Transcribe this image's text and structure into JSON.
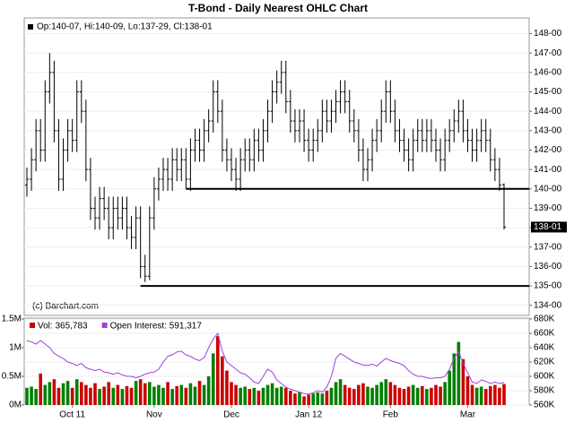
{
  "chart_data": {
    "type": "ohlc",
    "title": "T-Bond - Daily Nearest OHLC Chart",
    "legend_text": "Op:140-07, Hi:140-09, Lo:137-29, Cl:138-01",
    "credit": "(c) Barchart.com",
    "last_label": "138-01",
    "color": "#000000",
    "categories": [
      null,
      null,
      null,
      null,
      null,
      null,
      null,
      null,
      null,
      null,
      "Oct 11",
      null,
      null,
      null,
      null,
      null,
      null,
      null,
      null,
      null,
      null,
      null,
      null,
      null,
      null,
      null,
      null,
      null,
      "Nov",
      null,
      null,
      null,
      null,
      null,
      null,
      null,
      null,
      null,
      null,
      null,
      null,
      null,
      null,
      null,
      null,
      "Dec",
      null,
      null,
      null,
      null,
      null,
      null,
      null,
      null,
      null,
      null,
      null,
      null,
      null,
      null,
      null,
      null,
      "Jan 12",
      null,
      null,
      null,
      null,
      null,
      null,
      null,
      null,
      null,
      null,
      null,
      null,
      null,
      null,
      null,
      null,
      null,
      "Feb",
      null,
      null,
      null,
      null,
      null,
      null,
      null,
      null,
      null,
      null,
      null,
      null,
      null,
      null,
      null,
      null,
      "Mar",
      null,
      null,
      null,
      null,
      null,
      null,
      null,
      null
    ],
    "open": [
      140.2,
      140.5,
      141.5,
      143,
      142,
      145,
      146,
      143,
      140.5,
      142,
      143,
      142.5,
      145,
      144,
      141,
      139,
      138.5,
      139.5,
      139,
      138,
      139,
      138.5,
      139,
      138,
      137.5,
      138.5,
      136,
      135.5,
      138.5,
      140,
      140.5,
      141,
      140.5,
      141.5,
      141,
      141.5,
      140.5,
      142,
      142.5,
      142,
      143,
      143.5,
      145,
      144,
      142,
      141.5,
      141,
      140.5,
      141.5,
      142,
      141.5,
      142.5,
      142,
      143,
      144,
      145,
      145.5,
      146,
      144.5,
      143.5,
      143,
      143.5,
      142.5,
      142,
      142.5,
      143,
      144,
      143.5,
      144,
      144.5,
      145,
      144.5,
      143.5,
      143,
      142,
      141,
      141.5,
      142.5,
      143,
      144,
      145,
      144,
      143,
      142.5,
      142,
      141.5,
      142.5,
      143,
      142.5,
      143,
      142.5,
      142,
      141.5,
      142.5,
      143,
      143.5,
      144,
      143,
      142.5,
      142,
      142.5,
      143,
      142.5,
      141.5,
      141,
      140.21875
    ],
    "high": [
      141.1,
      142.1,
      143.6,
      143.6,
      145.6,
      147,
      146.6,
      143.6,
      142.6,
      143.6,
      143.6,
      145.6,
      145.6,
      144.6,
      141.6,
      139.6,
      140.1,
      140.1,
      139.6,
      139.6,
      139.6,
      139.6,
      139.6,
      138.6,
      139.1,
      139.1,
      136.6,
      139.1,
      140.6,
      141.1,
      141.6,
      141.6,
      142.1,
      142.1,
      142.1,
      142.1,
      142.6,
      143.1,
      143.1,
      143.6,
      144.1,
      145.6,
      145.6,
      144.6,
      142.6,
      142.1,
      141.6,
      142.1,
      142.6,
      142.6,
      143.1,
      143.1,
      143.6,
      144.6,
      145.6,
      146.1,
      146.6,
      146.6,
      145.1,
      144.1,
      144.1,
      144.1,
      143.1,
      143.1,
      143.6,
      144.6,
      144.6,
      144.6,
      145.1,
      145.6,
      145.6,
      145.1,
      144.1,
      143.6,
      142.6,
      142.1,
      143.1,
      143.6,
      144.6,
      145.6,
      145.6,
      144.6,
      143.6,
      143.1,
      142.6,
      143.1,
      143.6,
      143.6,
      143.6,
      143.6,
      143.1,
      142.6,
      143.1,
      143.6,
      144.1,
      144.6,
      144.6,
      143.6,
      143.1,
      143.1,
      143.6,
      143.6,
      143.1,
      142.1,
      141.6,
      140.28125
    ],
    "low": [
      139.6,
      139.9,
      140.9,
      141.4,
      141.4,
      144.4,
      142.4,
      139.9,
      139.9,
      141.4,
      141.9,
      141.9,
      143.4,
      140.4,
      138.4,
      137.9,
      137.9,
      138.4,
      137.4,
      137.4,
      137.9,
      137.9,
      137.4,
      136.9,
      136.9,
      135.4,
      135.2,
      135.3,
      137.9,
      139.4,
      139.9,
      139.9,
      139.9,
      140.4,
      140.4,
      140,
      139.9,
      141.4,
      141.4,
      141.4,
      142.4,
      142.9,
      143.4,
      141.4,
      140.9,
      140.4,
      139.9,
      139.9,
      140.9,
      140.9,
      140.9,
      141.4,
      141.4,
      142.4,
      143.4,
      144.4,
      144.9,
      143.9,
      142.9,
      142.4,
      142.4,
      141.9,
      141.4,
      141.4,
      141.9,
      142.4,
      142.9,
      142.9,
      143.4,
      143.9,
      143.9,
      142.9,
      142.4,
      141.4,
      140.4,
      140.4,
      140.9,
      141.9,
      142.4,
      143.4,
      143.4,
      142.4,
      141.9,
      141.4,
      140.9,
      140.9,
      141.9,
      141.9,
      141.9,
      141.9,
      141.4,
      140.9,
      140.9,
      141.9,
      142.4,
      142.9,
      142.4,
      141.9,
      141.4,
      141.4,
      141.9,
      141.9,
      140.9,
      140.4,
      139.9,
      137.90625
    ],
    "close": [
      140.5,
      141.5,
      143,
      142,
      145,
      146,
      143,
      140.5,
      142,
      143,
      142.5,
      145,
      144,
      141,
      139,
      138.5,
      139.5,
      139,
      138,
      139,
      138.5,
      139,
      138,
      137.5,
      138.5,
      136,
      135.5,
      138.5,
      140,
      140.5,
      141,
      140.5,
      141.5,
      141,
      141.5,
      140.5,
      142,
      142.5,
      142,
      143,
      143.5,
      145,
      144,
      142,
      141.5,
      141,
      140.5,
      141.5,
      142,
      141.5,
      142.5,
      142,
      143,
      144,
      145,
      145.5,
      146,
      144.5,
      143.5,
      143,
      143.5,
      142.5,
      142,
      142.5,
      143,
      144,
      143.5,
      144,
      144.5,
      145,
      144.5,
      143.5,
      143,
      142,
      141,
      141.5,
      142.5,
      143,
      144,
      145,
      144,
      143,
      142.5,
      142,
      141.5,
      142.5,
      143,
      142.5,
      143,
      142.5,
      142,
      141.5,
      142.5,
      143,
      143.5,
      144,
      143,
      142.5,
      142,
      142.5,
      143,
      142.5,
      141.5,
      141,
      140.2,
      138.03125
    ],
    "ylim": [
      133.48,
      148.81
    ],
    "yticks": [
      {
        "value": 134,
        "label": "134-00"
      },
      {
        "value": 135,
        "label": "135-00"
      },
      {
        "value": 136,
        "label": "136-00"
      },
      {
        "value": 137,
        "label": "137-00"
      },
      {
        "value": 138,
        "label": "138-00"
      },
      {
        "value": 139,
        "label": "139-00"
      },
      {
        "value": 140,
        "label": "140-00"
      },
      {
        "value": 141,
        "label": "141-00"
      },
      {
        "value": 142,
        "label": "142-00"
      },
      {
        "value": 143,
        "label": "143-00"
      },
      {
        "value": 144,
        "label": "144-00"
      },
      {
        "value": 145,
        "label": "145-00"
      },
      {
        "value": 146,
        "label": "146-00"
      },
      {
        "value": 147,
        "label": "147-00"
      },
      {
        "value": 148,
        "label": "148-00"
      }
    ],
    "support_lines": [
      {
        "value": 140,
        "start": 35
      },
      {
        "value": 135,
        "start": 25
      }
    ],
    "lower_panel": {
      "series": [
        {
          "name": "Vol: 365,783",
          "type": "bar",
          "color": "#cc0000",
          "up_color": "#008000",
          "values": [
            0.3,
            0.32,
            0.28,
            0.55,
            0.35,
            0.4,
            0.45,
            0.3,
            0.38,
            0.42,
            0.3,
            0.45,
            0.4,
            0.35,
            0.3,
            0.38,
            0.28,
            0.32,
            0.4,
            0.3,
            0.35,
            0.28,
            0.33,
            0.3,
            0.42,
            0.45,
            0.38,
            0.4,
            0.32,
            0.35,
            0.3,
            0.4,
            0.28,
            0.33,
            0.35,
            0.3,
            0.38,
            0.32,
            0.42,
            0.35,
            0.5,
            0.9,
            1.2,
            0.85,
            0.6,
            0.4,
            0.35,
            0.3,
            0.32,
            0.28,
            0.3,
            0.25,
            0.3,
            0.35,
            0.38,
            0.3,
            0.32,
            0.3,
            0.25,
            0.2,
            0.22,
            0.15,
            0.18,
            0.2,
            0.22,
            0.2,
            0.25,
            0.3,
            0.4,
            0.45,
            0.35,
            0.3,
            0.28,
            0.35,
            0.38,
            0.32,
            0.3,
            0.35,
            0.4,
            0.45,
            0.4,
            0.35,
            0.3,
            0.28,
            0.32,
            0.35,
            0.3,
            0.33,
            0.28,
            0.3,
            0.35,
            0.32,
            0.4,
            0.6,
            0.9,
            1.1,
            0.8,
            0.5,
            0.35,
            0.3,
            0.32,
            0.28,
            0.33,
            0.35,
            0.3,
            0.365783
          ]
        },
        {
          "name": "Open Interest: 591,317",
          "type": "line",
          "color": "#a040e0",
          "axis": "y2",
          "values": [
            650,
            648,
            645,
            650,
            645,
            640,
            632,
            628,
            625,
            620,
            618,
            615,
            618,
            612,
            610,
            608,
            610,
            606,
            605,
            603,
            605,
            602,
            600,
            600,
            598,
            600,
            603,
            605,
            606,
            610,
            620,
            628,
            630,
            634,
            635,
            630,
            628,
            624,
            622,
            626,
            640,
            652,
            660,
            635,
            620,
            615,
            610,
            605,
            603,
            598,
            592,
            590,
            600,
            610,
            606,
            595,
            590,
            585,
            582,
            580,
            578,
            576,
            575,
            577,
            580,
            578,
            585,
            600,
            625,
            632,
            628,
            624,
            620,
            618,
            616,
            615,
            617,
            614,
            620,
            625,
            622,
            620,
            618,
            615,
            608,
            603,
            600,
            600,
            598,
            597,
            598,
            598,
            600,
            610,
            625,
            635,
            618,
            605,
            592,
            590,
            595,
            593,
            590,
            592,
            590,
            591.317
          ]
        }
      ],
      "ylim": [
        0,
        1.5
      ],
      "yticks": [
        {
          "value": 0,
          "label": "0M"
        },
        {
          "value": 0.5,
          "label": "0.5M"
        },
        {
          "value": 1,
          "label": "1M"
        },
        {
          "value": 1.5,
          "label": "1.5M"
        }
      ],
      "y2lim": [
        560,
        680
      ],
      "y2ticks": [
        {
          "value": 560,
          "label": "560K"
        },
        {
          "value": 580,
          "label": "580K"
        },
        {
          "value": 600,
          "label": "600K"
        },
        {
          "value": 620,
          "label": "620K"
        },
        {
          "value": 640,
          "label": "640K"
        },
        {
          "value": 660,
          "label": "660K"
        },
        {
          "value": 680,
          "label": "680K"
        }
      ]
    }
  }
}
